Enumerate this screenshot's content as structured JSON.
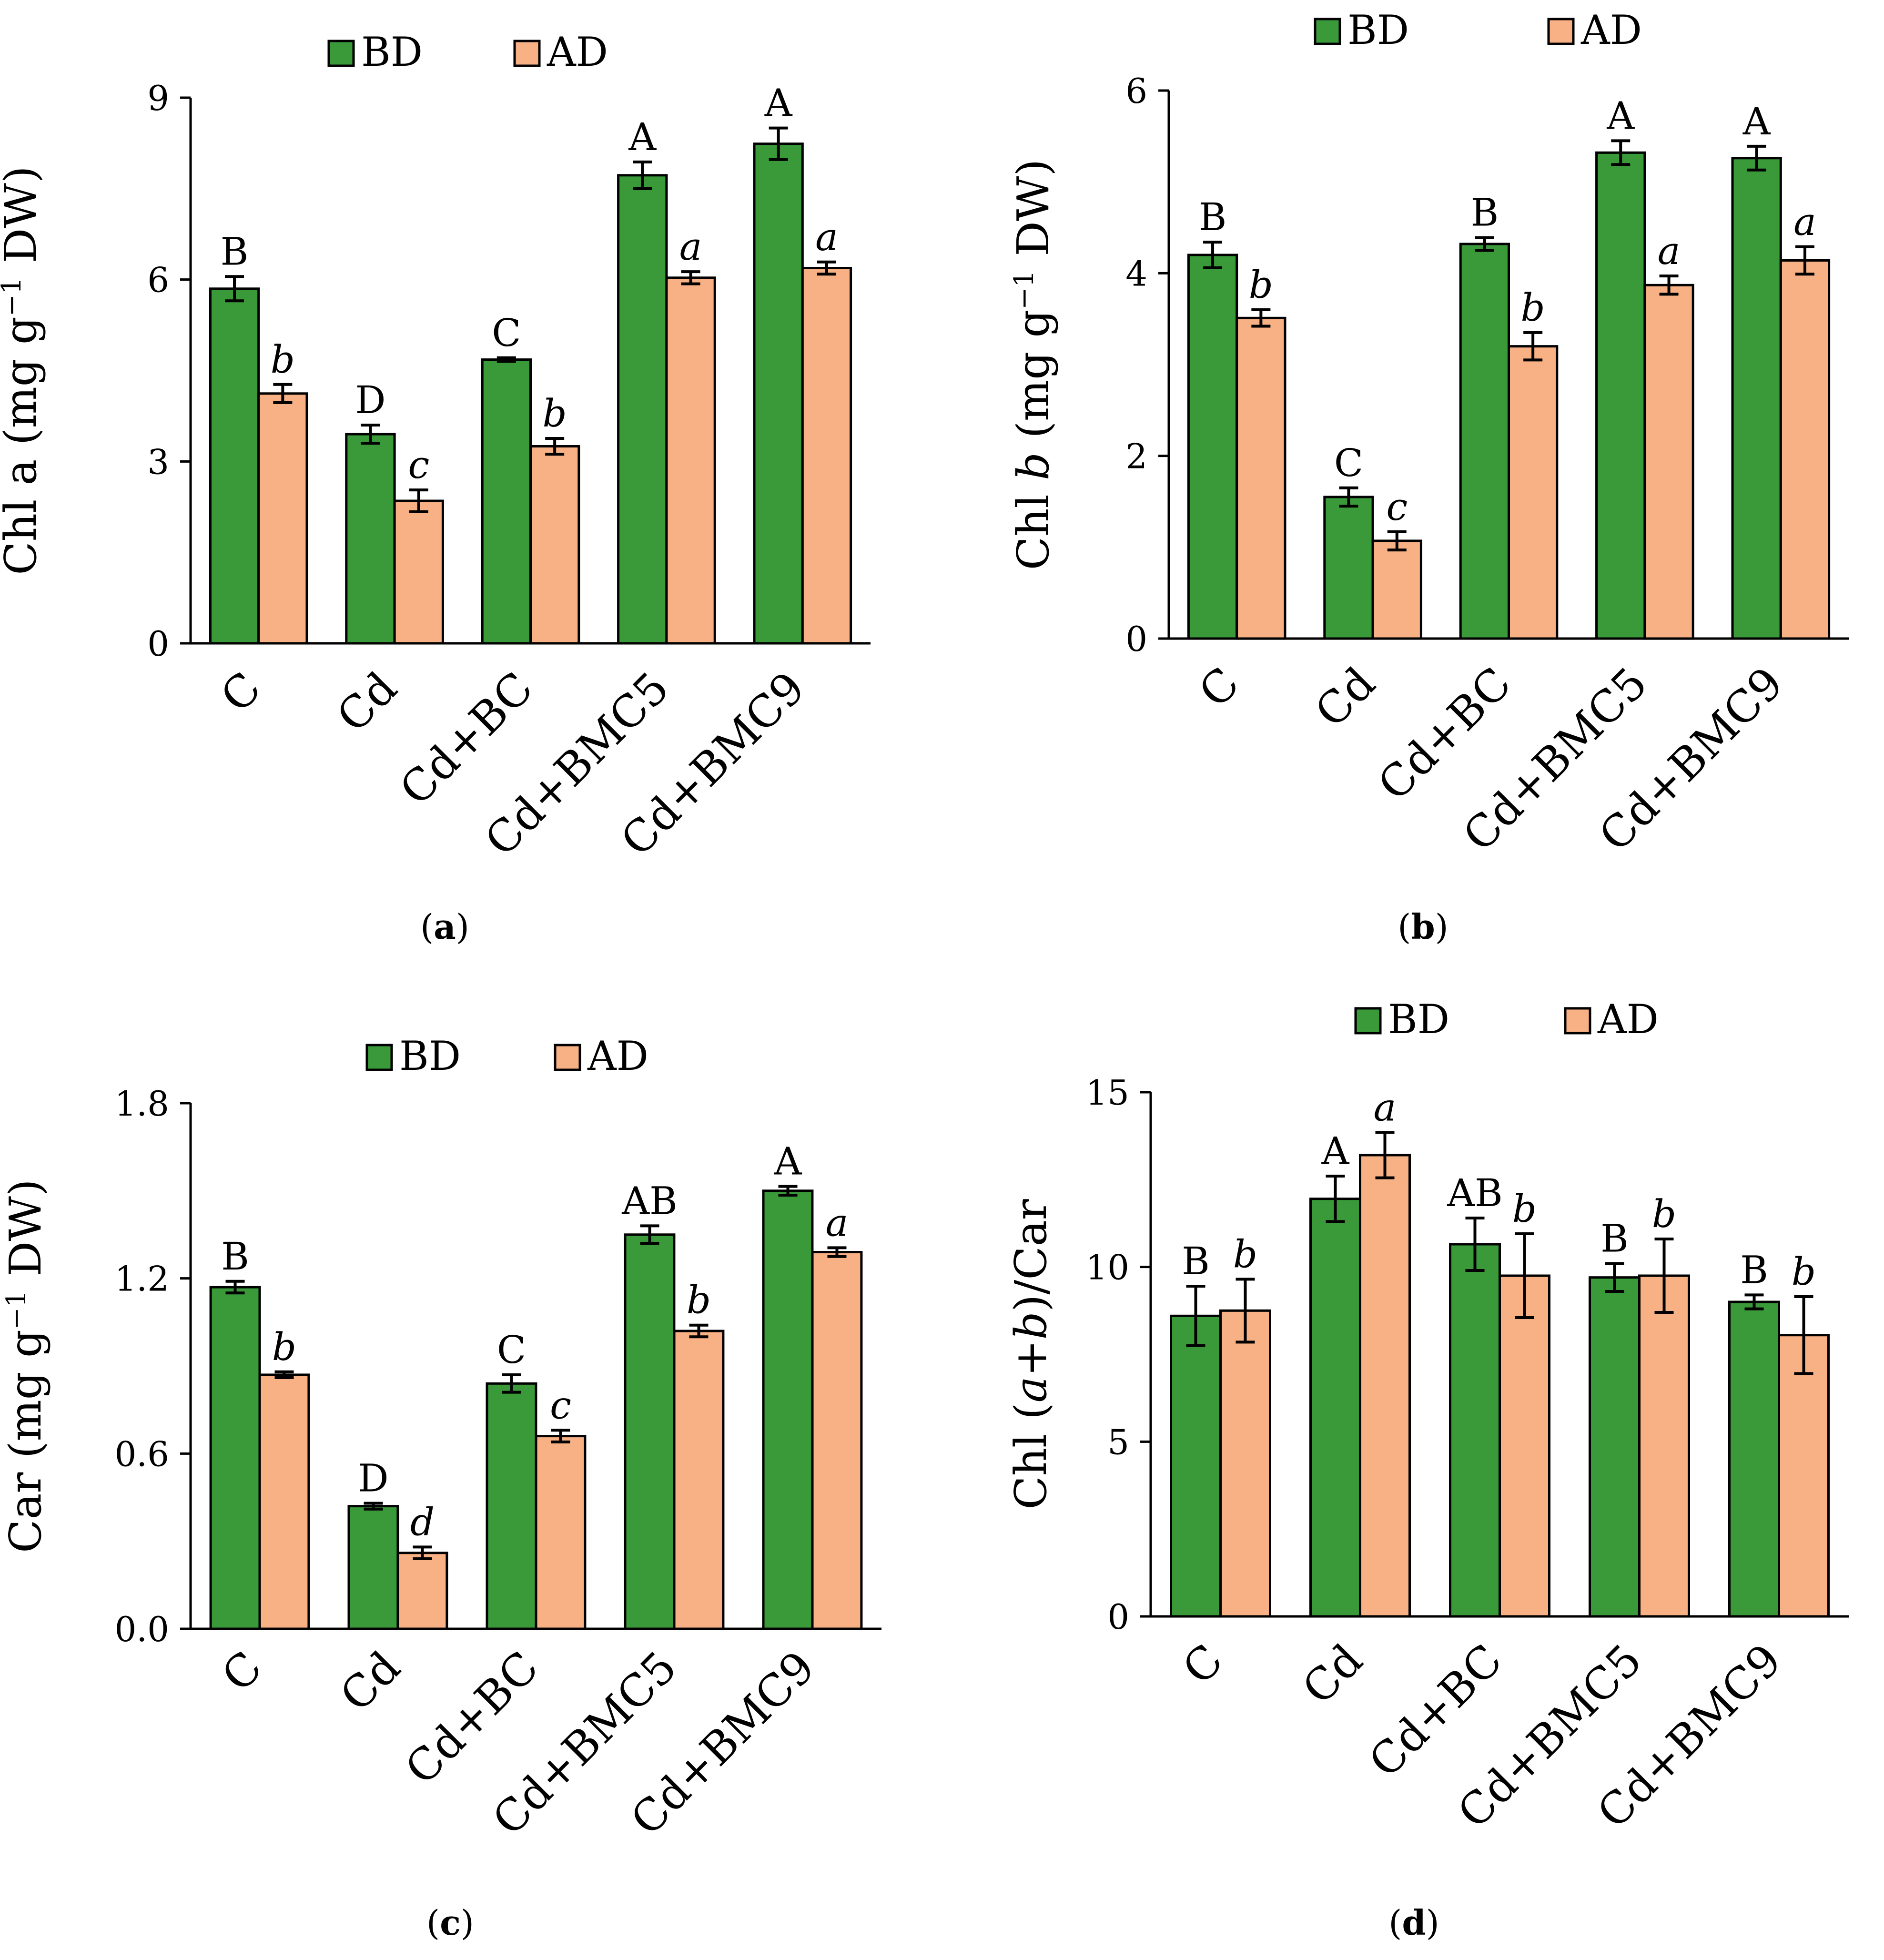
{
  "figure": {
    "description_hidden": false
  },
  "chart_data": [
    {
      "id": "a",
      "type": "bar",
      "panel_label": "(a)",
      "label_letter": "a",
      "ylabel": "Chl a (mg g⁻¹ DW)",
      "ylabel_parts": [
        {
          "text": "Chl a (mg g",
          "style": "normal"
        },
        {
          "text": "−1",
          "style": "sup"
        },
        {
          "text": " DW)",
          "style": "normal"
        }
      ],
      "ylim": [
        0,
        9
      ],
      "yticks": [
        0,
        3,
        6,
        9
      ],
      "ytick_labels": [
        "0",
        "3",
        "6",
        "9"
      ],
      "categories": [
        "C",
        "Cd",
        "Cd+BC",
        "Cd+BMC5",
        "Cd+BMC9"
      ],
      "legend": [
        "BD",
        "AD"
      ],
      "series": [
        {
          "name": "BD",
          "color": "#3a9a3a",
          "values": [
            5.85,
            3.45,
            4.68,
            7.72,
            8.24
          ],
          "errors": [
            0.2,
            0.15,
            0.03,
            0.22,
            0.26
          ],
          "letters": [
            "B",
            "D",
            "C",
            "A",
            "A"
          ],
          "italic": false
        },
        {
          "name": "AD",
          "color": "#f8b184",
          "values": [
            4.12,
            2.35,
            3.25,
            6.03,
            6.19
          ],
          "errors": [
            0.15,
            0.18,
            0.13,
            0.1,
            0.1
          ],
          "letters": [
            "b",
            "c",
            "b",
            "a",
            "a"
          ],
          "italic": true
        }
      ]
    },
    {
      "id": "b",
      "type": "bar",
      "panel_label": "(b)",
      "label_letter": "b",
      "ylabel": "Chl b (mg g⁻¹ DW)",
      "ylabel_parts": [
        {
          "text": "Chl ",
          "style": "normal"
        },
        {
          "text": "b",
          "style": "italic"
        },
        {
          "text": " (mg g",
          "style": "normal"
        },
        {
          "text": "−1",
          "style": "sup"
        },
        {
          "text": " DW)",
          "style": "normal"
        }
      ],
      "ylim": [
        0,
        6
      ],
      "yticks": [
        0,
        2,
        4,
        6
      ],
      "ytick_labels": [
        "0",
        "2",
        "4",
        "6"
      ],
      "categories": [
        "C",
        "Cd",
        "Cd+BC",
        "Cd+BMC5",
        "Cd+BMC9"
      ],
      "legend": [
        "BD",
        "AD"
      ],
      "series": [
        {
          "name": "BD",
          "color": "#3a9a3a",
          "values": [
            4.2,
            1.55,
            4.32,
            5.32,
            5.26
          ],
          "errors": [
            0.14,
            0.1,
            0.07,
            0.13,
            0.13
          ],
          "letters": [
            "B",
            "C",
            "B",
            "A",
            "A"
          ],
          "italic": false
        },
        {
          "name": "AD",
          "color": "#f8b184",
          "values": [
            3.51,
            1.07,
            3.2,
            3.87,
            4.14
          ],
          "errors": [
            0.09,
            0.1,
            0.15,
            0.1,
            0.15
          ],
          "letters": [
            "b",
            "c",
            "b",
            "a",
            "a"
          ],
          "italic": true
        }
      ]
    },
    {
      "id": "c",
      "type": "bar",
      "panel_label": "(c)",
      "label_letter": "c",
      "ylabel": "Car (mg g⁻¹ DW)",
      "ylabel_parts": [
        {
          "text": "Car (mg g",
          "style": "normal"
        },
        {
          "text": "−1",
          "style": "sup"
        },
        {
          "text": " DW)",
          "style": "normal"
        }
      ],
      "ylim": [
        0,
        1.8
      ],
      "yticks": [
        0,
        0.6,
        1.2,
        1.8
      ],
      "ytick_labels": [
        "0.0",
        "0.6",
        "1.2",
        "1.8"
      ],
      "categories": [
        "C",
        "Cd",
        "Cd+BC",
        "Cd+BMC5",
        "Cd+BMC9"
      ],
      "legend": [
        "BD",
        "AD"
      ],
      "series": [
        {
          "name": "BD",
          "color": "#3a9a3a",
          "values": [
            1.17,
            0.42,
            0.84,
            1.35,
            1.5
          ],
          "errors": [
            0.02,
            0.01,
            0.03,
            0.03,
            0.015
          ],
          "letters": [
            "B",
            "D",
            "C",
            "AB",
            "A"
          ],
          "italic": false
        },
        {
          "name": "AD",
          "color": "#f8b184",
          "values": [
            0.87,
            0.26,
            0.66,
            1.02,
            1.29
          ],
          "errors": [
            0.01,
            0.02,
            0.02,
            0.02,
            0.015
          ],
          "letters": [
            "b",
            "d",
            "c",
            "b",
            "a"
          ],
          "italic": true
        }
      ]
    },
    {
      "id": "d",
      "type": "bar",
      "panel_label": "(d)",
      "label_letter": "d",
      "ylabel": "Chl (a+b)/Car",
      "ylabel_parts": [
        {
          "text": "Chl (",
          "style": "normal"
        },
        {
          "text": "a",
          "style": "italic"
        },
        {
          "text": "+",
          "style": "normal"
        },
        {
          "text": "b",
          "style": "italic"
        },
        {
          "text": ")/Car",
          "style": "normal"
        }
      ],
      "ylim": [
        0,
        15
      ],
      "yticks": [
        0,
        5,
        10,
        15
      ],
      "ytick_labels": [
        "0",
        "5",
        "10",
        "15"
      ],
      "categories": [
        "C",
        "Cd",
        "Cd+BC",
        "Cd+BMC5",
        "Cd+BMC9"
      ],
      "legend": [
        "BD",
        "AD"
      ],
      "series": [
        {
          "name": "BD",
          "color": "#3a9a3a",
          "values": [
            8.6,
            11.95,
            10.65,
            9.7,
            9.0
          ],
          "errors": [
            0.85,
            0.65,
            0.75,
            0.4,
            0.2
          ],
          "letters": [
            "B",
            "A",
            "AB",
            "B",
            "B"
          ],
          "italic": false
        },
        {
          "name": "AD",
          "color": "#f8b184",
          "values": [
            8.75,
            13.2,
            9.75,
            9.75,
            8.05
          ],
          "errors": [
            0.9,
            0.65,
            1.2,
            1.05,
            1.1
          ],
          "letters": [
            "b",
            "a",
            "b",
            "b",
            "b"
          ],
          "italic": true
        }
      ]
    }
  ]
}
